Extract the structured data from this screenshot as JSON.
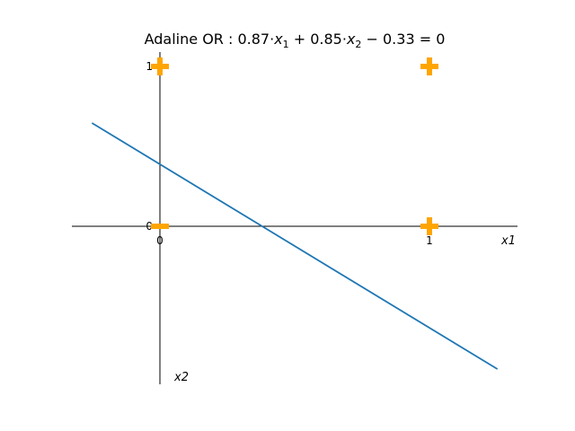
{
  "chart_data": {
    "type": "scatter",
    "title": "Adaline OR : 0.87·x1 + 0.85·x2 − 0.33 = 0",
    "title_parts": {
      "prefix": "Adaline OR : 0.87·",
      "v1": "x",
      "s1": "1",
      "mid": " + 0.85·",
      "v2": "x",
      "s2": "2",
      "suffix": " − 0.33 = 0"
    },
    "xlabel": "x1",
    "ylabel": "x2",
    "xlim": [
      -0.33,
      1.33
    ],
    "ylim": [
      -0.99,
      1.1
    ],
    "x_ticks": [
      0,
      1
    ],
    "x_tick_labels": [
      "0",
      "1"
    ],
    "y_ticks": [
      0,
      1
    ],
    "y_tick_labels": [
      "0",
      "1"
    ],
    "markers": [
      {
        "x": 0,
        "y": 0,
        "marker": "minus",
        "class": 0
      },
      {
        "x": 0,
        "y": 1,
        "marker": "plus",
        "class": 1
      },
      {
        "x": 1,
        "y": 0,
        "marker": "plus",
        "class": 1
      },
      {
        "x": 1,
        "y": 1,
        "marker": "plus",
        "class": 1
      }
    ],
    "decision_line": {
      "w1": 0.87,
      "w2": 0.85,
      "b": -0.33,
      "x_range": [
        -0.25,
        1.25
      ]
    },
    "colors": {
      "marker": "#ffa500",
      "line": "#1f77b4",
      "axes": "#000000"
    },
    "grid": false,
    "legend": "none"
  }
}
